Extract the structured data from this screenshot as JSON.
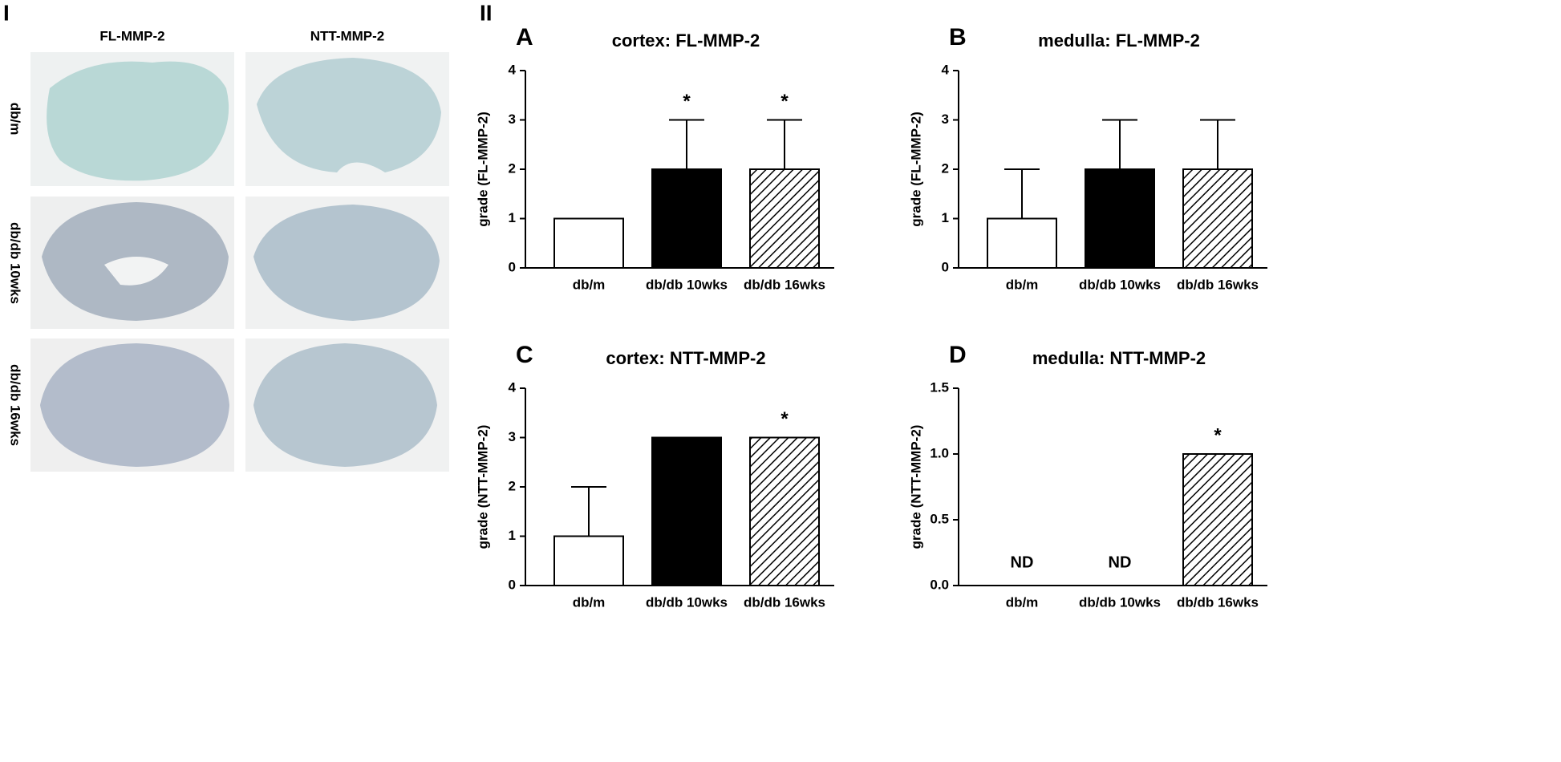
{
  "panel_i": {
    "label": "I",
    "columns": [
      "FL-MMP-2",
      "NTT-MMP-2"
    ],
    "rows": [
      "db/m",
      "db/db 10wks",
      "db/db 16wks"
    ]
  },
  "panel_ii_label": "II",
  "chart_data": [
    {
      "type": "bar",
      "panel": "A",
      "title": "cortex: FL-MMP-2",
      "ylabel": "grade (FL-MMP-2)",
      "categories": [
        "db/m",
        "db/db 10wks",
        "db/db 16wks"
      ],
      "values": [
        1,
        2,
        2
      ],
      "errors": [
        null,
        1,
        1
      ],
      "annotations": [
        null,
        "*",
        "*"
      ],
      "fills": [
        "#ffffff",
        "#000000",
        "hatched"
      ],
      "ylim": [
        0,
        4
      ],
      "yticks": [
        0,
        1,
        2,
        3,
        4
      ]
    },
    {
      "type": "bar",
      "panel": "B",
      "title": "medulla: FL-MMP-2",
      "ylabel": "grade (FL-MMP-2)",
      "categories": [
        "db/m",
        "db/db 10wks",
        "db/db 16wks"
      ],
      "values": [
        1,
        2,
        2
      ],
      "errors": [
        1,
        1,
        1
      ],
      "annotations": [
        null,
        null,
        null
      ],
      "fills": [
        "#ffffff",
        "#000000",
        "hatched"
      ],
      "ylim": [
        0,
        4
      ],
      "yticks": [
        0,
        1,
        2,
        3,
        4
      ]
    },
    {
      "type": "bar",
      "panel": "C",
      "title": "cortex: NTT-MMP-2",
      "ylabel": "grade (NTT-MMP-2)",
      "categories": [
        "db/m",
        "db/db 10wks",
        "db/db 16wks"
      ],
      "values": [
        1,
        3,
        3
      ],
      "errors": [
        1,
        null,
        null
      ],
      "annotations": [
        null,
        null,
        "*"
      ],
      "fills": [
        "#ffffff",
        "#000000",
        "hatched"
      ],
      "ylim": [
        0,
        4
      ],
      "yticks": [
        0,
        1,
        2,
        3,
        4
      ]
    },
    {
      "type": "bar",
      "panel": "D",
      "title": "medulla: NTT-MMP-2",
      "ylabel": "grade (NTT-MMP-2)",
      "categories": [
        "db/m",
        "db/db 10wks",
        "db/db 16wks"
      ],
      "values": [
        null,
        null,
        1
      ],
      "errors": [
        null,
        null,
        null
      ],
      "annotations": [
        "ND",
        "ND",
        "*"
      ],
      "fills": [
        "#ffffff",
        "#000000",
        "hatched"
      ],
      "ylim": [
        0,
        1.5
      ],
      "yticks": [
        {
          "value": 0,
          "label": "0.0"
        },
        0.5,
        {
          "value": 1,
          "label": "1.0"
        },
        1.5
      ]
    }
  ]
}
